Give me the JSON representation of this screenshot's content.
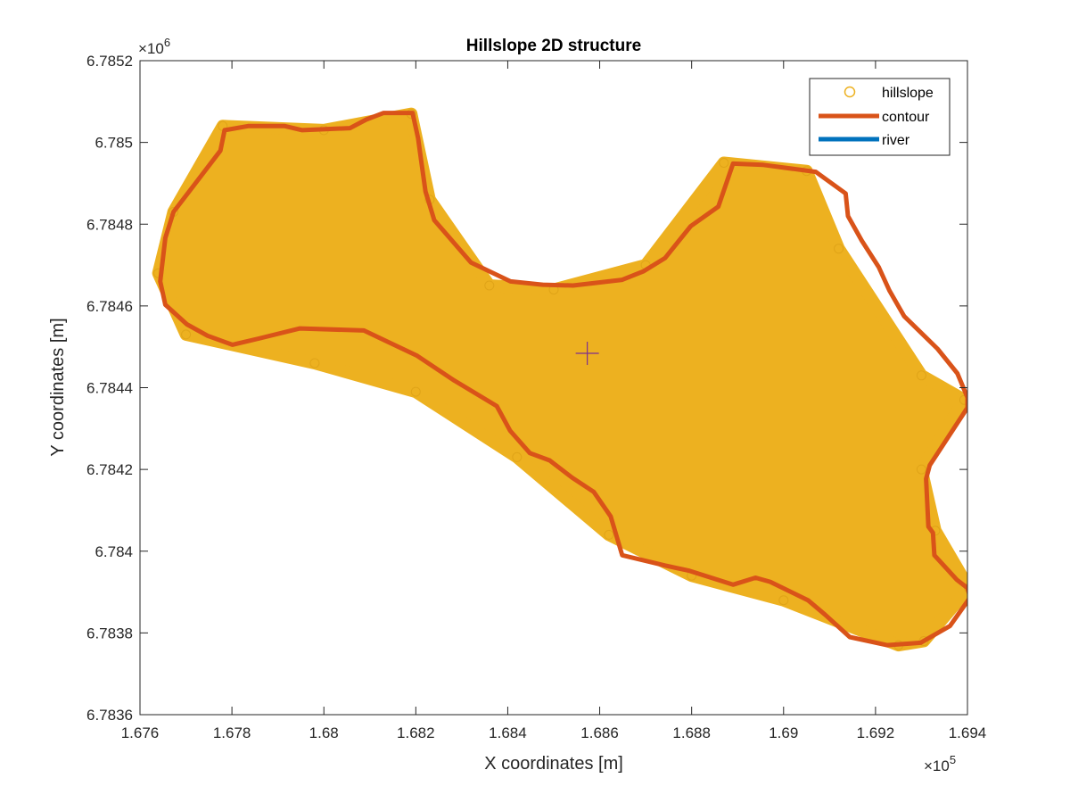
{
  "chart_data": {
    "type": "scatter",
    "title": "Hillslope 2D structure",
    "xlabel": "X coordinates [m]",
    "ylabel": "Y coordinates [m]",
    "xlim": [
      167600,
      169400
    ],
    "ylim": [
      6783600,
      6785200
    ],
    "x_ticks": [
      167600,
      167800,
      168000,
      168200,
      168400,
      168600,
      168800,
      169000,
      169200,
      169400
    ],
    "x_tick_labels": [
      "1.676",
      "1.678",
      "1.68",
      "1.682",
      "1.684",
      "1.686",
      "1.688",
      "1.69",
      "1.692",
      "1.694"
    ],
    "y_ticks": [
      6783600,
      6783800,
      6784000,
      6784200,
      6784400,
      6784600,
      6784800,
      6785000,
      6785200
    ],
    "y_tick_labels": [
      "6.7836",
      "6.7838",
      "6.784",
      "6.7842",
      "6.7844",
      "6.7846",
      "6.7848",
      "6.785",
      "6.7852"
    ],
    "x_exponent": {
      "base": "×10",
      "exp": "5"
    },
    "y_exponent": {
      "base": "×10",
      "exp": "6"
    },
    "grid": false,
    "legend_position": "top-right",
    "series": [
      {
        "name": "hillslope",
        "marker": "circle",
        "color": "#EDB120",
        "fill_color": "#EDB120",
        "points": [
          [
            167673,
            6784830
          ],
          [
            167780,
            6785040
          ],
          [
            168000,
            6785030
          ],
          [
            168190,
            6785070
          ],
          [
            168230,
            6784860
          ],
          [
            168360,
            6784650
          ],
          [
            168500,
            6784640
          ],
          [
            168700,
            6784700
          ],
          [
            168870,
            6784950
          ],
          [
            169050,
            6784930
          ],
          [
            169120,
            6784740
          ],
          [
            169300,
            6784430
          ],
          [
            169393,
            6784370
          ],
          [
            169300,
            6784200
          ],
          [
            169330,
            6784050
          ],
          [
            169403,
            6783910
          ],
          [
            169305,
            6783780
          ],
          [
            169250,
            6783770
          ],
          [
            169000,
            6783880
          ],
          [
            168800,
            6783940
          ],
          [
            168620,
            6784040
          ],
          [
            168420,
            6784230
          ],
          [
            168200,
            6784390
          ],
          [
            167980,
            6784460
          ],
          [
            167700,
            6784530
          ],
          [
            167640,
            6784680
          ]
        ]
      },
      {
        "name": "contour",
        "marker": "line",
        "color": "#D95319",
        "points": [
          [
            167673,
            6784830
          ],
          [
            167722,
            6784902
          ],
          [
            167775,
            6784980
          ],
          [
            167784,
            6785030
          ],
          [
            167835,
            6785040
          ],
          [
            167915,
            6785040
          ],
          [
            167953,
            6785030
          ],
          [
            168057,
            6785035
          ],
          [
            168092,
            6785056
          ],
          [
            168130,
            6785072
          ],
          [
            168193,
            6785072
          ],
          [
            168205,
            6785010
          ],
          [
            168212,
            6784953
          ],
          [
            168221,
            6784880
          ],
          [
            168240,
            6784810
          ],
          [
            168320,
            6784706
          ],
          [
            168406,
            6784660
          ],
          [
            168476,
            6784652
          ],
          [
            168542,
            6784650
          ],
          [
            168649,
            6784664
          ],
          [
            168696,
            6784685
          ],
          [
            168742,
            6784717
          ],
          [
            168798,
            6784795
          ],
          [
            168858,
            6784843
          ],
          [
            168890,
            6784948
          ],
          [
            168956,
            6784945
          ],
          [
            169070,
            6784928
          ],
          [
            169135,
            6784875
          ],
          [
            169140,
            6784820
          ],
          [
            169170,
            6784760
          ],
          [
            169207,
            6784695
          ],
          [
            169230,
            6784638
          ],
          [
            169262,
            6784575
          ],
          [
            169335,
            6784495
          ],
          [
            169378,
            6784435
          ],
          [
            169400,
            6784376
          ],
          [
            169400,
            6784351
          ],
          [
            169318,
            6784210
          ],
          [
            169310,
            6784177
          ],
          [
            169315,
            6784060
          ],
          [
            169325,
            6784045
          ],
          [
            169328,
            6783990
          ],
          [
            169377,
            6783930
          ],
          [
            169400,
            6783910
          ],
          [
            169406,
            6783887
          ],
          [
            169362,
            6783817
          ],
          [
            169298,
            6783776
          ],
          [
            169225,
            6783770
          ],
          [
            169144,
            6783790
          ],
          [
            169090,
            6783845
          ],
          [
            169053,
            6783880
          ],
          [
            168971,
            6783925
          ],
          [
            168939,
            6783935
          ],
          [
            168890,
            6783918
          ],
          [
            168795,
            6783952
          ],
          [
            168742,
            6783965
          ],
          [
            168649,
            6783990
          ],
          [
            168624,
            6784085
          ],
          [
            168587,
            6784145
          ],
          [
            168540,
            6784180
          ],
          [
            168491,
            6784222
          ],
          [
            168448,
            6784240
          ],
          [
            168405,
            6784295
          ],
          [
            168376,
            6784355
          ],
          [
            168283,
            6784418
          ],
          [
            168203,
            6784478
          ],
          [
            168087,
            6784540
          ],
          [
            167948,
            6784545
          ],
          [
            167858,
            6784520
          ],
          [
            167801,
            6784505
          ],
          [
            167747,
            6784527
          ],
          [
            167702,
            6784555
          ],
          [
            167655,
            6784603
          ],
          [
            167644,
            6784660
          ],
          [
            167655,
            6784766
          ]
        ]
      },
      {
        "name": "river",
        "marker": "line",
        "color": "#0072BD",
        "points": []
      }
    ],
    "annotations": [
      {
        "marker": "plus",
        "color": "#7E2F8E",
        "x": 168573,
        "y": 6784484
      }
    ]
  }
}
